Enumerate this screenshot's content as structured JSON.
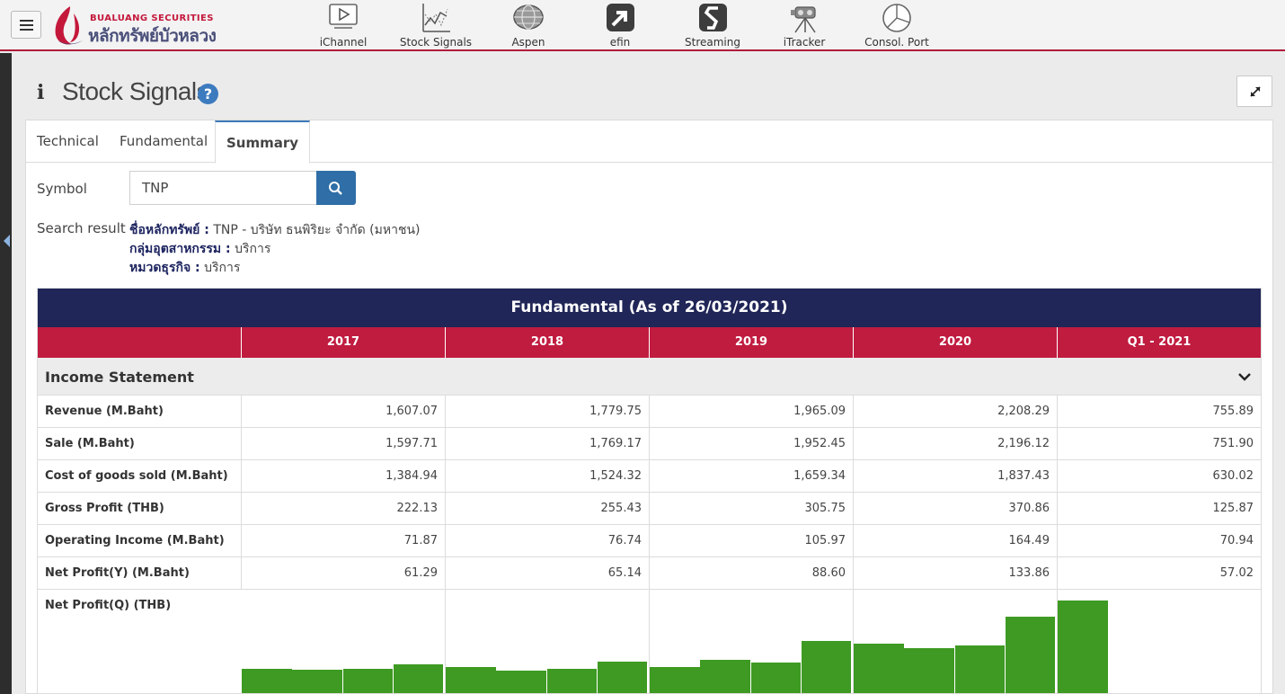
{
  "topbar": {
    "logo_en": "BUALUANG SECURITIES",
    "logo_th": "หลักทรัพย์บัวหลวง",
    "apps": [
      {
        "label": "iChannel",
        "icon": "ichannel-icon"
      },
      {
        "label": "Stock Signals",
        "icon": "stock-signals-icon"
      },
      {
        "label": "Aspen",
        "icon": "aspen-icon"
      },
      {
        "label": "efin",
        "icon": "efin-icon"
      },
      {
        "label": "Streaming",
        "icon": "streaming-icon"
      },
      {
        "label": "iTracker",
        "icon": "itracker-icon"
      },
      {
        "label": "Consol. Port",
        "icon": "consol-port-icon"
      }
    ]
  },
  "page": {
    "title": "Stock Signals",
    "help": "?",
    "info": "i"
  },
  "tabs": [
    "Technical",
    "Fundamental",
    "Summary"
  ],
  "active_tab": "Summary",
  "search": {
    "symbol_label": "Symbol",
    "symbol_value": "TNP",
    "result_label": "Search result",
    "result_lines": [
      {
        "key": "ชื่อหลักทรัพย์ :",
        "value": "TNP - บริษัท ธนพิริยะ จำกัด (มหาชน)"
      },
      {
        "key": "กลุ่มอุตสาหกรรม :",
        "value": "บริการ"
      },
      {
        "key": "หมวดธุรกิจ :",
        "value": "บริการ"
      }
    ]
  },
  "table": {
    "title": "Fundamental (As of 26/03/2021)",
    "periods": [
      "2017",
      "2018",
      "2019",
      "2020",
      "Q1 - 2021"
    ],
    "section": "Income Statement",
    "rows": [
      {
        "label": "Revenue (M.Baht)",
        "values": [
          "1,607.07",
          "1,779.75",
          "1,965.09",
          "2,208.29",
          "755.89"
        ]
      },
      {
        "label": "Sale (M.Baht)",
        "values": [
          "1,597.71",
          "1,769.17",
          "1,952.45",
          "2,196.12",
          "751.90"
        ]
      },
      {
        "label": "Cost of goods sold (M.Baht)",
        "values": [
          "1,384.94",
          "1,524.32",
          "1,659.34",
          "1,837.43",
          "630.02"
        ]
      },
      {
        "label": "Gross Profit (THB)",
        "values": [
          "222.13",
          "255.43",
          "305.75",
          "370.86",
          "125.87"
        ]
      },
      {
        "label": "Operating Income (M.Baht)",
        "values": [
          "71.87",
          "76.74",
          "105.97",
          "164.49",
          "70.94"
        ]
      },
      {
        "label": "Net Profit(Y) (M.Baht)",
        "values": [
          "61.29",
          "65.14",
          "88.60",
          "133.86",
          "57.02"
        ]
      }
    ],
    "chart_label": "Net Profit(Q) (THB)"
  },
  "chart_data": {
    "type": "bar",
    "color": "#3e9a22",
    "ylim": [
      0,
      57.02
    ],
    "groups": [
      {
        "period": "2017",
        "values": [
          14.7,
          14.3,
          14.7,
          17.5
        ]
      },
      {
        "period": "2018",
        "values": [
          16.0,
          13.9,
          14.8,
          19.6
        ]
      },
      {
        "period": "2019",
        "values": [
          15.9,
          20.6,
          18.8,
          32.2
        ]
      },
      {
        "period": "2020",
        "values": [
          30.7,
          27.7,
          29.3,
          47.2
        ]
      },
      {
        "period": "Q1 - 2021",
        "values": [
          57.02
        ]
      }
    ]
  },
  "colors": {
    "brand_red": "#c01c40",
    "navy": "#202657",
    "accent_blue": "#2f6ea7",
    "bar_green": "#3e9a22"
  }
}
